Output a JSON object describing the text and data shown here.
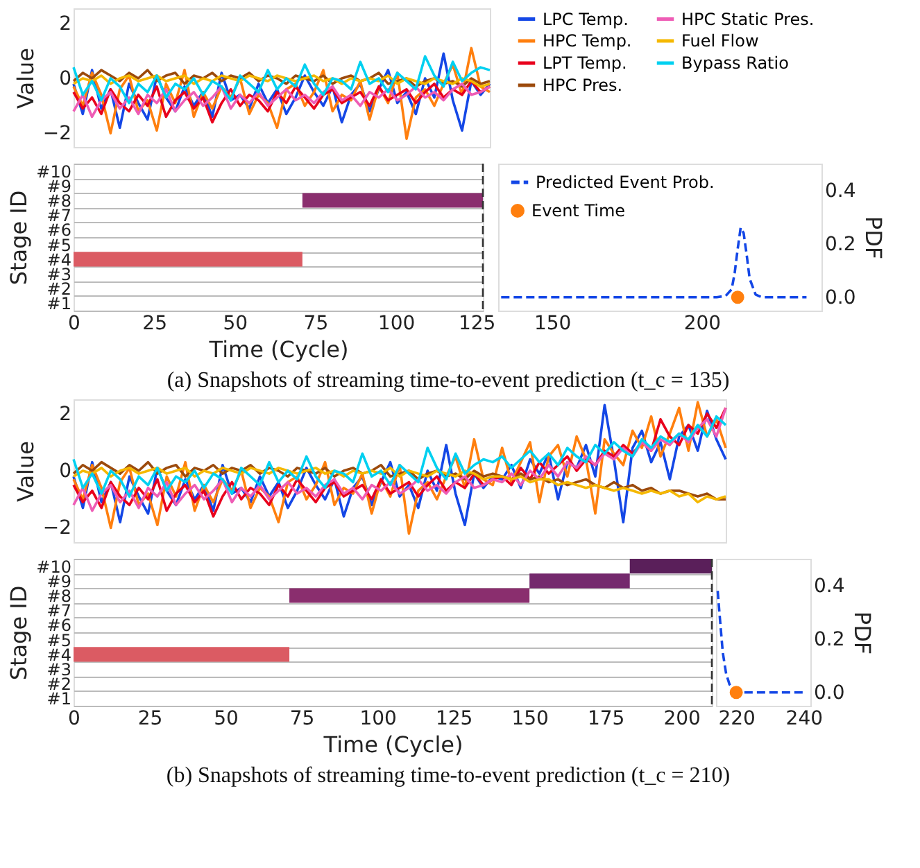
{
  "chart_data": [
    {
      "type": "line",
      "ylabel": "Value",
      "categories": [
        null,
        null,
        null,
        null,
        null,
        null,
        null,
        null,
        null,
        null,
        null,
        null,
        null,
        null,
        null,
        null,
        null,
        null,
        null,
        null,
        null,
        null,
        null,
        null,
        null,
        null,
        null,
        null,
        null,
        null,
        null,
        null,
        null,
        null,
        null,
        null,
        null,
        null,
        null,
        null,
        null,
        null,
        null,
        null,
        null,
        null
      ],
      "ylim": [
        -2.5,
        2.55
      ],
      "yticks": [
        -2,
        0,
        2
      ],
      "tick_labels": "y",
      "legend": "right",
      "series": [
        {
          "name": "LPC Temp.",
          "color": "#1447e6",
          "values": [
            -0.2,
            -1.3,
            0.3,
            -1.1,
            -0.4,
            -1.8,
            -0.2,
            -0.9,
            -1.5,
            0.1,
            -0.7,
            -1.2,
            -0.3,
            -1.0,
            -0.5,
            -1.4,
            0.2,
            -0.8,
            -0.6,
            -1.1,
            -0.2,
            -0.9,
            -0.4,
            -1.3,
            -0.7,
            0.1,
            -0.5,
            -1.0,
            -0.3,
            -1.6,
            -0.6,
            -0.2,
            -1.2,
            -0.4,
            0.3,
            -0.9,
            -0.5,
            -1.3,
            0.0,
            -0.7,
            0.9,
            -0.8,
            -1.9,
            -0.1,
            -0.6,
            -0.2
          ]
        },
        {
          "name": "HPC Temp.",
          "color": "#ff7f0e",
          "values": [
            -0.3,
            -1.0,
            0.2,
            -0.6,
            -2.0,
            -0.4,
            0.1,
            -1.2,
            -0.8,
            -1.9,
            -0.2,
            -0.9,
            0.3,
            -1.4,
            -0.5,
            -1.1,
            -0.3,
            -0.7,
            0.0,
            -1.3,
            -0.6,
            -0.9,
            -1.8,
            -0.4,
            -0.2,
            -1.0,
            -0.5,
            0.3,
            -1.2,
            -0.6,
            -0.8,
            -0.1,
            -1.5,
            -0.3,
            -0.9,
            0.2,
            -2.2,
            -0.7,
            -0.4,
            -1.0,
            -0.2,
            0.5,
            -0.6,
            1.1,
            -0.3,
            -0.5
          ]
        },
        {
          "name": "LPT Temp.",
          "color": "#e8001c",
          "values": [
            -0.5,
            -1.1,
            -0.7,
            -1.3,
            -0.4,
            -0.9,
            -1.2,
            -0.6,
            -1.0,
            -0.3,
            -1.4,
            -0.8,
            -0.5,
            -1.1,
            -0.7,
            -1.6,
            -0.9,
            -0.4,
            -1.0,
            -0.6,
            -0.8,
            -1.2,
            -0.5,
            -0.9,
            -0.3,
            -0.7,
            -1.1,
            -0.6,
            -0.4,
            -0.9,
            -0.7,
            -0.5,
            -1.0,
            -0.3,
            -0.8,
            -0.6,
            -0.4,
            -0.9,
            -0.5,
            -0.2,
            -0.7,
            -0.4,
            -0.6,
            -0.1,
            -0.5,
            -0.3
          ]
        },
        {
          "name": "HPC Pres.",
          "color": "#9c4a0c",
          "values": [
            -0.1,
            0.2,
            0.0,
            0.3,
            0.1,
            -0.1,
            0.2,
            0.0,
            0.3,
            -0.1,
            0.1,
            0.2,
            -0.2,
            0.1,
            0.0,
            0.2,
            -0.1,
            0.1,
            0.0,
            0.2,
            -0.1,
            0.1,
            0.0,
            -0.2,
            0.1,
            0.0,
            -0.1,
            0.1,
            -0.2,
            0.0,
            0.1,
            -0.1,
            0.0,
            0.2,
            -0.2,
            -0.1,
            0.0,
            -0.3,
            -0.1,
            0.0,
            -0.2,
            -0.1,
            -0.3,
            0.0,
            -0.2,
            -0.1
          ]
        },
        {
          "name": "HPC Static Pres.",
          "color": "#ee5cb5",
          "values": [
            -1.2,
            -0.6,
            -1.4,
            -0.8,
            -0.5,
            -1.1,
            -0.7,
            -1.3,
            -0.6,
            -0.9,
            -0.4,
            -1.2,
            -0.8,
            -0.5,
            -1.0,
            -0.7,
            -0.3,
            -1.1,
            -0.6,
            -0.9,
            -0.5,
            -1.0,
            -0.7,
            -0.4,
            -0.8,
            -0.6,
            -0.9,
            -0.5,
            -0.3,
            -0.8,
            -0.6,
            -1.0,
            -0.5,
            -0.7,
            -0.4,
            -0.8,
            -0.6,
            -0.3,
            -0.7,
            -0.5,
            -0.8,
            -0.4,
            -0.2,
            -0.6,
            -0.5,
            -0.3
          ]
        },
        {
          "name": "Fuel Flow",
          "color": "#f5b800",
          "values": [
            -0.2,
            0.0,
            -0.1,
            0.1,
            -0.2,
            0.0,
            0.1,
            -0.1,
            0.0,
            0.1,
            -0.1,
            0.0,
            0.1,
            -0.2,
            0.0,
            -0.1,
            0.1,
            0.0,
            -0.1,
            0.1,
            0.0,
            -0.1,
            0.1,
            0.0,
            -0.1,
            0.0,
            0.1,
            -0.1,
            0.0,
            -0.2,
            0.0,
            -0.1,
            0.0,
            -0.1,
            0.1,
            -0.2,
            0.0,
            -0.1,
            -0.2,
            0.0,
            -0.1,
            -0.2,
            0.0,
            -0.1,
            -0.3,
            -0.2
          ]
        },
        {
          "name": "Bypass Ratio",
          "color": "#00d0f0",
          "values": [
            0.4,
            -0.6,
            -0.1,
            -0.8,
            0.0,
            -0.3,
            -0.9,
            -0.2,
            -0.5,
            0.1,
            -0.7,
            -0.2,
            -0.4,
            0.0,
            -0.6,
            -0.1,
            -0.3,
            -0.8,
            0.1,
            -0.2,
            -0.5,
            0.3,
            -0.4,
            0.0,
            -0.3,
            0.5,
            -0.2,
            -0.6,
            0.0,
            -0.1,
            -0.4,
            0.6,
            -0.2,
            0.0,
            -0.5,
            0.2,
            -0.1,
            -0.4,
            0.8,
            0.1,
            -0.3,
            0.6,
            -0.1,
            0.2,
            0.4,
            0.3
          ]
        }
      ]
    },
    {
      "type": "bar",
      "orientation": "horizontal",
      "ylabel": "Stage ID",
      "xlabel": "Time (Cycle)",
      "categories": [
        "#10",
        "#9",
        "#8",
        "#7",
        "#6",
        "#5",
        "#4",
        "#3",
        "#2",
        "#1"
      ],
      "values": [
        null,
        null,
        56,
        null,
        null,
        null,
        71,
        null,
        null,
        null
      ],
      "base": [
        null,
        null,
        71,
        null,
        null,
        null,
        0,
        null,
        null,
        null
      ],
      "colors": [
        null,
        null,
        "#8a2e6e",
        null,
        null,
        null,
        "#db5b63",
        null,
        null,
        null
      ],
      "xlim": [
        0,
        127
      ],
      "xticks": [
        0,
        25,
        50,
        75,
        100,
        125
      ],
      "grid": "y",
      "ref_lines": [
        {
          "axis": "x",
          "value": 127,
          "color": "#333333",
          "line_style": "dashed"
        }
      ],
      "annotations": [
        "(a) Snapshots of streaming time-to-event prediction (t_c = 135)"
      ]
    },
    {
      "type": "line",
      "xlim": [
        132,
        240
      ],
      "xticks": [
        150,
        200
      ],
      "y2label": "PDF",
      "y2lim": [
        -0.05,
        0.5
      ],
      "y2ticks": [
        {
          "value": 0,
          "label": "0.0"
        },
        {
          "value": 0.2,
          "label": "0.2"
        },
        {
          "value": 0.4,
          "label": "0.4"
        }
      ],
      "legend": "top left",
      "series": [
        {
          "name": "Predicted Event Prob.",
          "type": "line",
          "line_style": "dashed",
          "axis": "y2",
          "color": "#1447e6",
          "x": [
            133,
            140,
            150,
            160,
            170,
            180,
            190,
            200,
            205,
            208,
            210,
            211,
            212,
            213,
            214,
            215,
            216,
            218,
            220,
            225,
            230,
            235
          ],
          "values": [
            0,
            0,
            0,
            0,
            0,
            0,
            0,
            0,
            0,
            0.005,
            0.03,
            0.09,
            0.18,
            0.26,
            0.24,
            0.16,
            0.07,
            0.01,
            0,
            0,
            0,
            0
          ]
        },
        {
          "name": "Event Time",
          "type": "scatter",
          "marker": "circle",
          "axis": "y2",
          "color": "#ff7f0e",
          "x": [
            212
          ],
          "values": [
            0
          ]
        }
      ]
    },
    {
      "type": "line",
      "ylabel": "Value",
      "categories": [
        null,
        null,
        null,
        null,
        null,
        null,
        null,
        null,
        null,
        null,
        null,
        null,
        null,
        null,
        null,
        null,
        null,
        null,
        null,
        null,
        null,
        null,
        null,
        null,
        null,
        null,
        null,
        null,
        null,
        null,
        null,
        null,
        null,
        null,
        null,
        null,
        null,
        null,
        null,
        null,
        null,
        null,
        null,
        null,
        null,
        null,
        null,
        null,
        null,
        null,
        null,
        null,
        null,
        null,
        null,
        null,
        null,
        null,
        null,
        null,
        null,
        null,
        null,
        null,
        null,
        null,
        null,
        null,
        null,
        null,
        null
      ],
      "ylim": [
        -2.5,
        2.5
      ],
      "yticks": [
        -2,
        0,
        2
      ],
      "tick_labels": "y",
      "series": [
        {
          "color": "#1447e6",
          "values": [
            -0.2,
            -1.3,
            0.3,
            -1.1,
            -0.4,
            -1.8,
            -0.2,
            -0.9,
            -1.5,
            0.1,
            -0.7,
            -1.2,
            -0.3,
            -1.0,
            -0.5,
            -1.4,
            0.2,
            -0.8,
            -0.6,
            -1.1,
            -0.2,
            -0.9,
            -0.4,
            -1.3,
            -0.7,
            0.1,
            -0.5,
            -1.0,
            -0.3,
            -1.6,
            -0.6,
            -0.2,
            -1.2,
            -0.4,
            0.3,
            -0.9,
            -0.5,
            -1.3,
            0.0,
            -0.7,
            0.9,
            -0.8,
            -1.9,
            -0.1,
            -0.6,
            -0.2,
            -0.3,
            0.2,
            -0.6,
            0.4,
            -0.1,
            0.6,
            -1.0,
            0.3,
            0.1,
            0.9,
            -0.2,
            2.3,
            0.4,
            -1.8,
            0.8,
            1.4,
            0.3,
            1.0,
            -0.3,
            1.2,
            1.6,
            0.7,
            2.1,
            1.1,
            0.4
          ]
        },
        {
          "color": "#ff7f0e",
          "values": [
            -0.3,
            -1.0,
            0.2,
            -0.6,
            -2.0,
            -0.4,
            0.1,
            -1.2,
            -0.8,
            -1.9,
            -0.2,
            -0.9,
            0.3,
            -1.4,
            -0.5,
            -1.1,
            -0.3,
            -0.7,
            0.0,
            -1.3,
            -0.6,
            -0.9,
            -1.8,
            -0.4,
            -0.2,
            -1.0,
            -0.5,
            0.3,
            -1.2,
            -0.6,
            -0.8,
            -0.1,
            -1.5,
            -0.3,
            -0.9,
            0.2,
            -2.2,
            -0.7,
            -0.4,
            -1.0,
            -0.2,
            0.5,
            -0.6,
            1.1,
            -0.3,
            -0.5,
            0.8,
            -0.4,
            0.3,
            1.0,
            -1.1,
            0.5,
            0.9,
            -0.2,
            1.2,
            0.4,
            -1.5,
            1.1,
            0.6,
            0.2,
            1.4,
            0.8,
            1.9,
            0.5,
            1.3,
            2.2,
            0.7,
            2.4,
            1.2,
            1.8,
            0.8
          ]
        },
        {
          "color": "#e8001c",
          "values": [
            -0.5,
            -1.1,
            -0.7,
            -1.3,
            -0.4,
            -0.9,
            -1.2,
            -0.6,
            -1.0,
            -0.3,
            -1.4,
            -0.8,
            -0.5,
            -1.1,
            -0.7,
            -1.6,
            -0.9,
            -0.4,
            -1.0,
            -0.6,
            -0.8,
            -1.2,
            -0.5,
            -0.9,
            -0.3,
            -0.7,
            -1.1,
            -0.6,
            -0.4,
            -0.9,
            -0.7,
            -0.5,
            -1.0,
            -0.3,
            -0.8,
            -0.6,
            -0.4,
            -0.9,
            -0.5,
            -0.2,
            -0.7,
            -0.4,
            -0.6,
            -0.1,
            -0.5,
            -0.3,
            -0.2,
            -0.5,
            0.1,
            -0.3,
            0.3,
            -0.1,
            0.2,
            0.5,
            0.0,
            0.4,
            0.2,
            0.7,
            0.5,
            0.9,
            0.6,
            1.0,
            0.7,
            1.8,
            1.2,
            0.9,
            1.6,
            1.3,
            2.0,
            1.5,
            2.2
          ]
        },
        {
          "color": "#9c4a0c",
          "values": [
            -0.1,
            0.2,
            0.0,
            0.3,
            0.1,
            -0.1,
            0.2,
            0.0,
            0.3,
            -0.1,
            0.1,
            0.2,
            -0.2,
            0.1,
            0.0,
            0.2,
            -0.1,
            0.1,
            0.0,
            0.2,
            -0.1,
            0.1,
            0.0,
            -0.2,
            0.1,
            0.0,
            -0.1,
            0.1,
            -0.2,
            0.0,
            0.1,
            -0.1,
            0.0,
            0.2,
            -0.2,
            -0.1,
            0.0,
            -0.3,
            -0.1,
            0.0,
            -0.2,
            -0.1,
            -0.3,
            0.0,
            -0.2,
            -0.1,
            -0.2,
            -0.3,
            -0.1,
            -0.3,
            -0.2,
            -0.4,
            -0.3,
            -0.5,
            -0.4,
            -0.3,
            -0.5,
            -0.6,
            -0.4,
            -0.6,
            -0.5,
            -0.7,
            -0.6,
            -0.8,
            -0.7,
            -0.7,
            -0.8,
            -0.9,
            -0.8,
            -1.0,
            -1.0
          ]
        },
        {
          "color": "#ee5cb5",
          "values": [
            -1.2,
            -0.6,
            -1.4,
            -0.8,
            -0.5,
            -1.1,
            -0.7,
            -1.3,
            -0.6,
            -0.9,
            -0.4,
            -1.2,
            -0.8,
            -0.5,
            -1.0,
            -0.7,
            -0.3,
            -1.1,
            -0.6,
            -0.9,
            -0.5,
            -1.0,
            -0.7,
            -0.4,
            -0.8,
            -0.6,
            -0.9,
            -0.5,
            -0.3,
            -0.8,
            -0.6,
            -1.0,
            -0.5,
            -0.7,
            -0.4,
            -0.8,
            -0.6,
            -0.3,
            -0.7,
            -0.5,
            -0.8,
            -0.4,
            -0.2,
            -0.6,
            -0.5,
            -0.3,
            -0.4,
            -0.1,
            -0.5,
            0.0,
            -0.3,
            0.2,
            -0.2,
            0.3,
            0.1,
            0.5,
            0.2,
            0.6,
            0.4,
            0.8,
            0.5,
            1.0,
            0.7,
            1.1,
            0.9,
            1.3,
            1.0,
            1.5,
            1.8,
            1.2,
            2.2
          ]
        },
        {
          "color": "#f5b800",
          "values": [
            -0.2,
            0.0,
            -0.1,
            0.1,
            -0.2,
            0.0,
            0.1,
            -0.1,
            0.0,
            0.1,
            -0.1,
            0.0,
            0.1,
            -0.2,
            0.0,
            -0.1,
            0.1,
            0.0,
            -0.1,
            0.1,
            0.0,
            -0.1,
            0.1,
            0.0,
            -0.1,
            0.0,
            0.1,
            -0.1,
            0.0,
            -0.2,
            0.0,
            -0.1,
            0.0,
            -0.1,
            0.1,
            -0.2,
            0.0,
            -0.1,
            -0.2,
            0.0,
            -0.1,
            -0.2,
            0.0,
            -0.1,
            -0.3,
            -0.2,
            -0.2,
            -0.3,
            -0.2,
            -0.4,
            -0.3,
            -0.3,
            -0.5,
            -0.4,
            -0.5,
            -0.6,
            -0.5,
            -0.6,
            -0.7,
            -0.6,
            -0.7,
            -0.8,
            -0.7,
            -0.8,
            -0.7,
            -0.9,
            -0.8,
            -1.1,
            -0.9,
            -1.0,
            -0.9
          ]
        },
        {
          "color": "#00d0f0",
          "values": [
            0.4,
            -0.6,
            -0.1,
            -0.8,
            0.0,
            -0.3,
            -0.9,
            -0.2,
            -0.5,
            0.1,
            -0.7,
            -0.2,
            -0.4,
            0.0,
            -0.6,
            -0.1,
            -0.3,
            -0.8,
            0.1,
            -0.2,
            -0.5,
            0.3,
            -0.4,
            0.0,
            -0.3,
            0.5,
            -0.2,
            -0.6,
            0.0,
            -0.1,
            -0.4,
            0.6,
            -0.2,
            0.0,
            -0.5,
            0.2,
            -0.1,
            -0.4,
            0.8,
            0.1,
            -0.3,
            0.6,
            -0.1,
            0.2,
            0.4,
            0.3,
            0.5,
            0.1,
            0.4,
            0.7,
            0.3,
            0.6,
            0.2,
            0.8,
            0.5,
            0.3,
            0.9,
            0.6,
            1.0,
            0.7,
            0.5,
            1.1,
            0.8,
            1.2,
            1.0,
            1.3,
            1.1,
            1.6,
            1.2,
            1.9,
            1.6
          ]
        }
      ]
    },
    {
      "type": "bar",
      "orientation": "horizontal",
      "ylabel": "Stage ID",
      "xlabel": "Time (Cycle)",
      "categories": [
        "#10",
        "#9",
        "#8",
        "#7",
        "#6",
        "#5",
        "#4",
        "#3",
        "#2",
        "#1"
      ],
      "values": [
        27,
        33,
        79,
        null,
        null,
        null,
        71,
        null,
        null,
        null
      ],
      "base": [
        183,
        150,
        71,
        null,
        null,
        null,
        0,
        null,
        null,
        null
      ],
      "colors": [
        "#5a1f5a",
        "#74296d",
        "#8a2e6e",
        null,
        null,
        null,
        "#db5b63",
        null,
        null,
        null
      ],
      "xlim": [
        0,
        210
      ],
      "xticks": [
        0,
        25,
        50,
        75,
        100,
        125,
        150,
        175,
        200
      ],
      "grid": "y",
      "ref_lines": [
        {
          "axis": "x",
          "value": 210,
          "color": "#333333",
          "line_style": "dashed"
        }
      ],
      "annotations": [
        "(b) Snapshots of streaming time-to-event prediction (t_c = 210)"
      ]
    },
    {
      "type": "line",
      "xlim": [
        214,
        242
      ],
      "xticks": [
        220,
        240
      ],
      "y2label": "PDF",
      "y2lim": [
        -0.05,
        0.5
      ],
      "y2ticks": [
        {
          "value": 0,
          "label": "0.0"
        },
        {
          "value": 0.2,
          "label": "0.2"
        },
        {
          "value": 0.4,
          "label": "0.4"
        }
      ],
      "series": [
        {
          "type": "line",
          "line_style": "dashed",
          "axis": "y2",
          "color": "#1447e6",
          "x": [
            214.5,
            215,
            216,
            217,
            218,
            219,
            220,
            222,
            225,
            230,
            235,
            240
          ],
          "values": [
            0.38,
            0.3,
            0.15,
            0.07,
            0.03,
            0.015,
            0.005,
            0,
            0,
            0,
            0,
            0
          ]
        },
        {
          "type": "scatter",
          "marker": "circle",
          "axis": "y2",
          "color": "#ff7f0e",
          "x": [
            220
          ],
          "values": [
            0
          ]
        }
      ]
    }
  ]
}
